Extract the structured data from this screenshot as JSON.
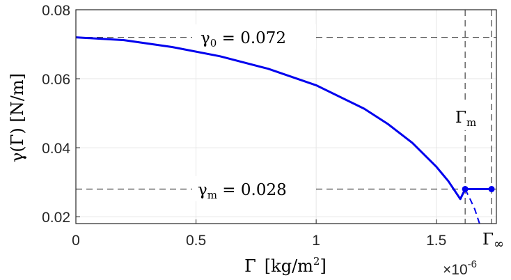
{
  "chart_data": {
    "type": "line",
    "xlabel": {
      "symbol": "Γ",
      "unit_open": "[kg/m",
      "unit_sup": "2",
      "unit_close": "]"
    },
    "ylabel": {
      "text": "γ(Γ) [N/m]"
    },
    "x_exponent": {
      "base": "×10",
      "power": "-6"
    },
    "xlim": [
      0,
      1.75e-06
    ],
    "ylim": [
      0.018,
      0.08
    ],
    "xticks": [
      0,
      5e-07,
      1e-06,
      1.5e-06
    ],
    "xtick_labels": [
      "0",
      "0.5",
      "1",
      "1.5"
    ],
    "yticks": [
      0.02,
      0.04,
      0.06,
      0.08
    ],
    "ytick_labels": [
      "0.02",
      "0.04",
      "0.06",
      "0.08"
    ],
    "grid": true,
    "series": [
      {
        "style": "solid",
        "x": [
          0,
          2e-07,
          4e-07,
          6e-07,
          8e-07,
          1e-06,
          1.2e-06,
          1.3e-06,
          1.4e-06,
          1.5e-06,
          1.55e-06,
          1.6e-06,
          1.62e-06
        ],
        "y": [
          0.072,
          0.0712,
          0.0692,
          0.0665,
          0.0629,
          0.0581,
          0.0513,
          0.0468,
          0.0414,
          0.0345,
          0.0303,
          0.0251,
          0.028
        ]
      },
      {
        "style": "dashed",
        "x": [
          1.62e-06,
          1.64e-06,
          1.66e-06,
          1.68e-06
        ],
        "y": [
          0.028,
          0.0252,
          0.0222,
          0.018
        ]
      },
      {
        "style": "solid-markers",
        "x": [
          1.62e-06,
          1.73e-06
        ],
        "y": [
          0.028,
          0.028
        ]
      }
    ],
    "reference_lines": [
      {
        "axis": "y",
        "value": 0.072
      },
      {
        "axis": "y",
        "value": 0.028
      },
      {
        "axis": "x",
        "value": 1.62e-06
      },
      {
        "axis": "x",
        "value": 1.73e-06
      }
    ],
    "annotations": {
      "gamma0": {
        "base": "γ",
        "sub": "0",
        "rest": " = 0.072"
      },
      "gammam": {
        "base": "γ",
        "sub": "m",
        "rest": " = 0.028"
      },
      "Gammam": {
        "base": "Γ",
        "sub": "m"
      },
      "Gammainf": {
        "base": "Γ",
        "sub": "∞"
      }
    },
    "colors": {
      "line": "#0000ee",
      "reference": "#303030",
      "grid": "#e6e6e6",
      "axis": "#262626"
    }
  }
}
